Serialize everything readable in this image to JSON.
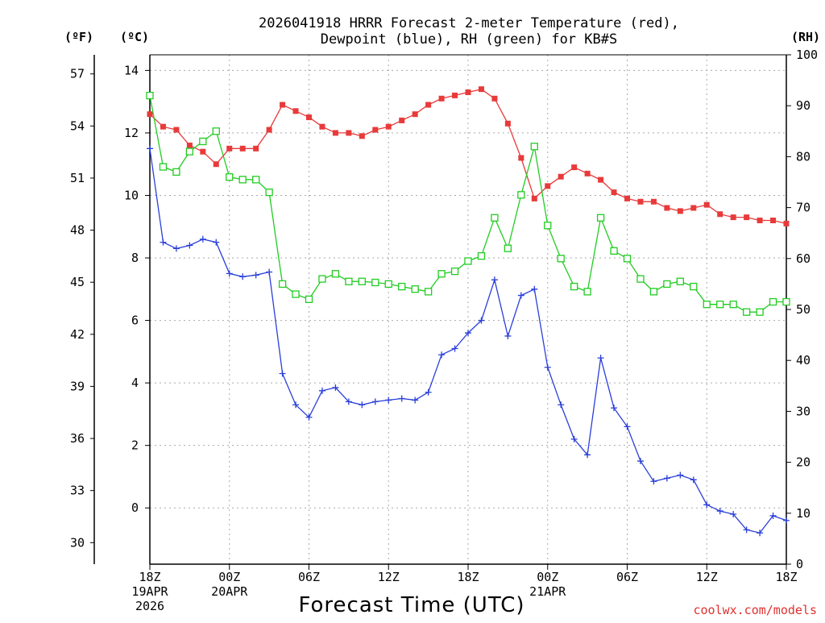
{
  "chart_data": {
    "type": "line",
    "title_line1": "2026041918 HRRR Forecast 2-meter Temperature (red),",
    "title_line2": "Dewpoint (blue), RH (green) for KB#S",
    "xlabel": "Forecast Time (UTC)",
    "credit": "coolwx.com/models",
    "units": {
      "fahrenheit": "(ºF)",
      "celsius": "(ºC)",
      "rh": "(RH)"
    },
    "x_range_hours": [
      0,
      48
    ],
    "x_ticks": [
      {
        "hour": 0,
        "lines": [
          "18Z",
          "19APR",
          "2026"
        ]
      },
      {
        "hour": 6,
        "lines": [
          "00Z",
          "20APR"
        ]
      },
      {
        "hour": 12,
        "lines": [
          "06Z"
        ]
      },
      {
        "hour": 18,
        "lines": [
          "12Z"
        ]
      },
      {
        "hour": 24,
        "lines": [
          "18Z"
        ]
      },
      {
        "hour": 30,
        "lines": [
          "00Z",
          "21APR"
        ]
      },
      {
        "hour": 36,
        "lines": [
          "06Z"
        ]
      },
      {
        "hour": 42,
        "lines": [
          "12Z"
        ]
      },
      {
        "hour": 48,
        "lines": [
          "18Z"
        ]
      }
    ],
    "y_celsius": {
      "range": [
        -1.8,
        14.5
      ],
      "ticks": [
        0,
        2,
        4,
        6,
        8,
        10,
        12,
        14
      ]
    },
    "y_fahrenheit": {
      "ticks": [
        30,
        33,
        36,
        39,
        42,
        45,
        48,
        51,
        54,
        57
      ]
    },
    "y_rh": {
      "range": [
        0,
        100
      ],
      "ticks": [
        0,
        10,
        20,
        30,
        40,
        50,
        60,
        70,
        80,
        90,
        100
      ]
    },
    "grid": true,
    "series": [
      {
        "name": "2-meter Temperature",
        "unit": "C",
        "color": "#e83a3a",
        "marker": "filled-square",
        "values": [
          12.6,
          12.2,
          12.1,
          11.6,
          11.4,
          11.0,
          11.5,
          11.5,
          11.5,
          12.1,
          12.9,
          12.7,
          12.5,
          12.2,
          12.0,
          12.0,
          11.9,
          12.1,
          12.2,
          12.4,
          12.6,
          12.9,
          13.1,
          13.2,
          13.3,
          13.4,
          13.1,
          12.3,
          11.2,
          9.9,
          10.3,
          10.6,
          10.9,
          10.7,
          10.5,
          10.1,
          9.9,
          9.8,
          9.8,
          9.6,
          9.5,
          9.6,
          9.7,
          9.4,
          9.3,
          9.3,
          9.2,
          9.2,
          9.1
        ]
      },
      {
        "name": "Dewpoint",
        "unit": "C",
        "color": "#2a3fd8",
        "marker": "plus",
        "values": [
          11.5,
          8.5,
          8.3,
          8.4,
          8.6,
          8.5,
          7.5,
          7.4,
          7.45,
          7.55,
          4.3,
          3.3,
          2.9,
          3.75,
          3.85,
          3.4,
          3.3,
          3.4,
          3.45,
          3.5,
          3.45,
          3.7,
          4.9,
          5.1,
          5.6,
          6.0,
          7.3,
          5.5,
          6.8,
          7.0,
          4.5,
          3.3,
          2.2,
          1.7,
          4.8,
          3.2,
          2.6,
          1.5,
          0.85,
          0.95,
          1.05,
          0.9,
          0.1,
          -0.1,
          -0.2,
          -0.7,
          -0.8,
          -0.25,
          -0.4
        ]
      },
      {
        "name": "Relative Humidity",
        "unit": "%",
        "color": "#22cc22",
        "marker": "open-square",
        "values": [
          92,
          78,
          77,
          81,
          83,
          85,
          76,
          75.5,
          75.5,
          73,
          55,
          53,
          52,
          56,
          57,
          55.5,
          55.5,
          55.3,
          55,
          54.5,
          54,
          53.5,
          57,
          57.5,
          59.5,
          60.5,
          68,
          62,
          72.5,
          82,
          66.5,
          60,
          54.5,
          53.5,
          68,
          61.5,
          60,
          56,
          53.5,
          55,
          55.5,
          54.5,
          51,
          51,
          51,
          49.5,
          49.5,
          51.5,
          51.5
        ]
      }
    ]
  }
}
